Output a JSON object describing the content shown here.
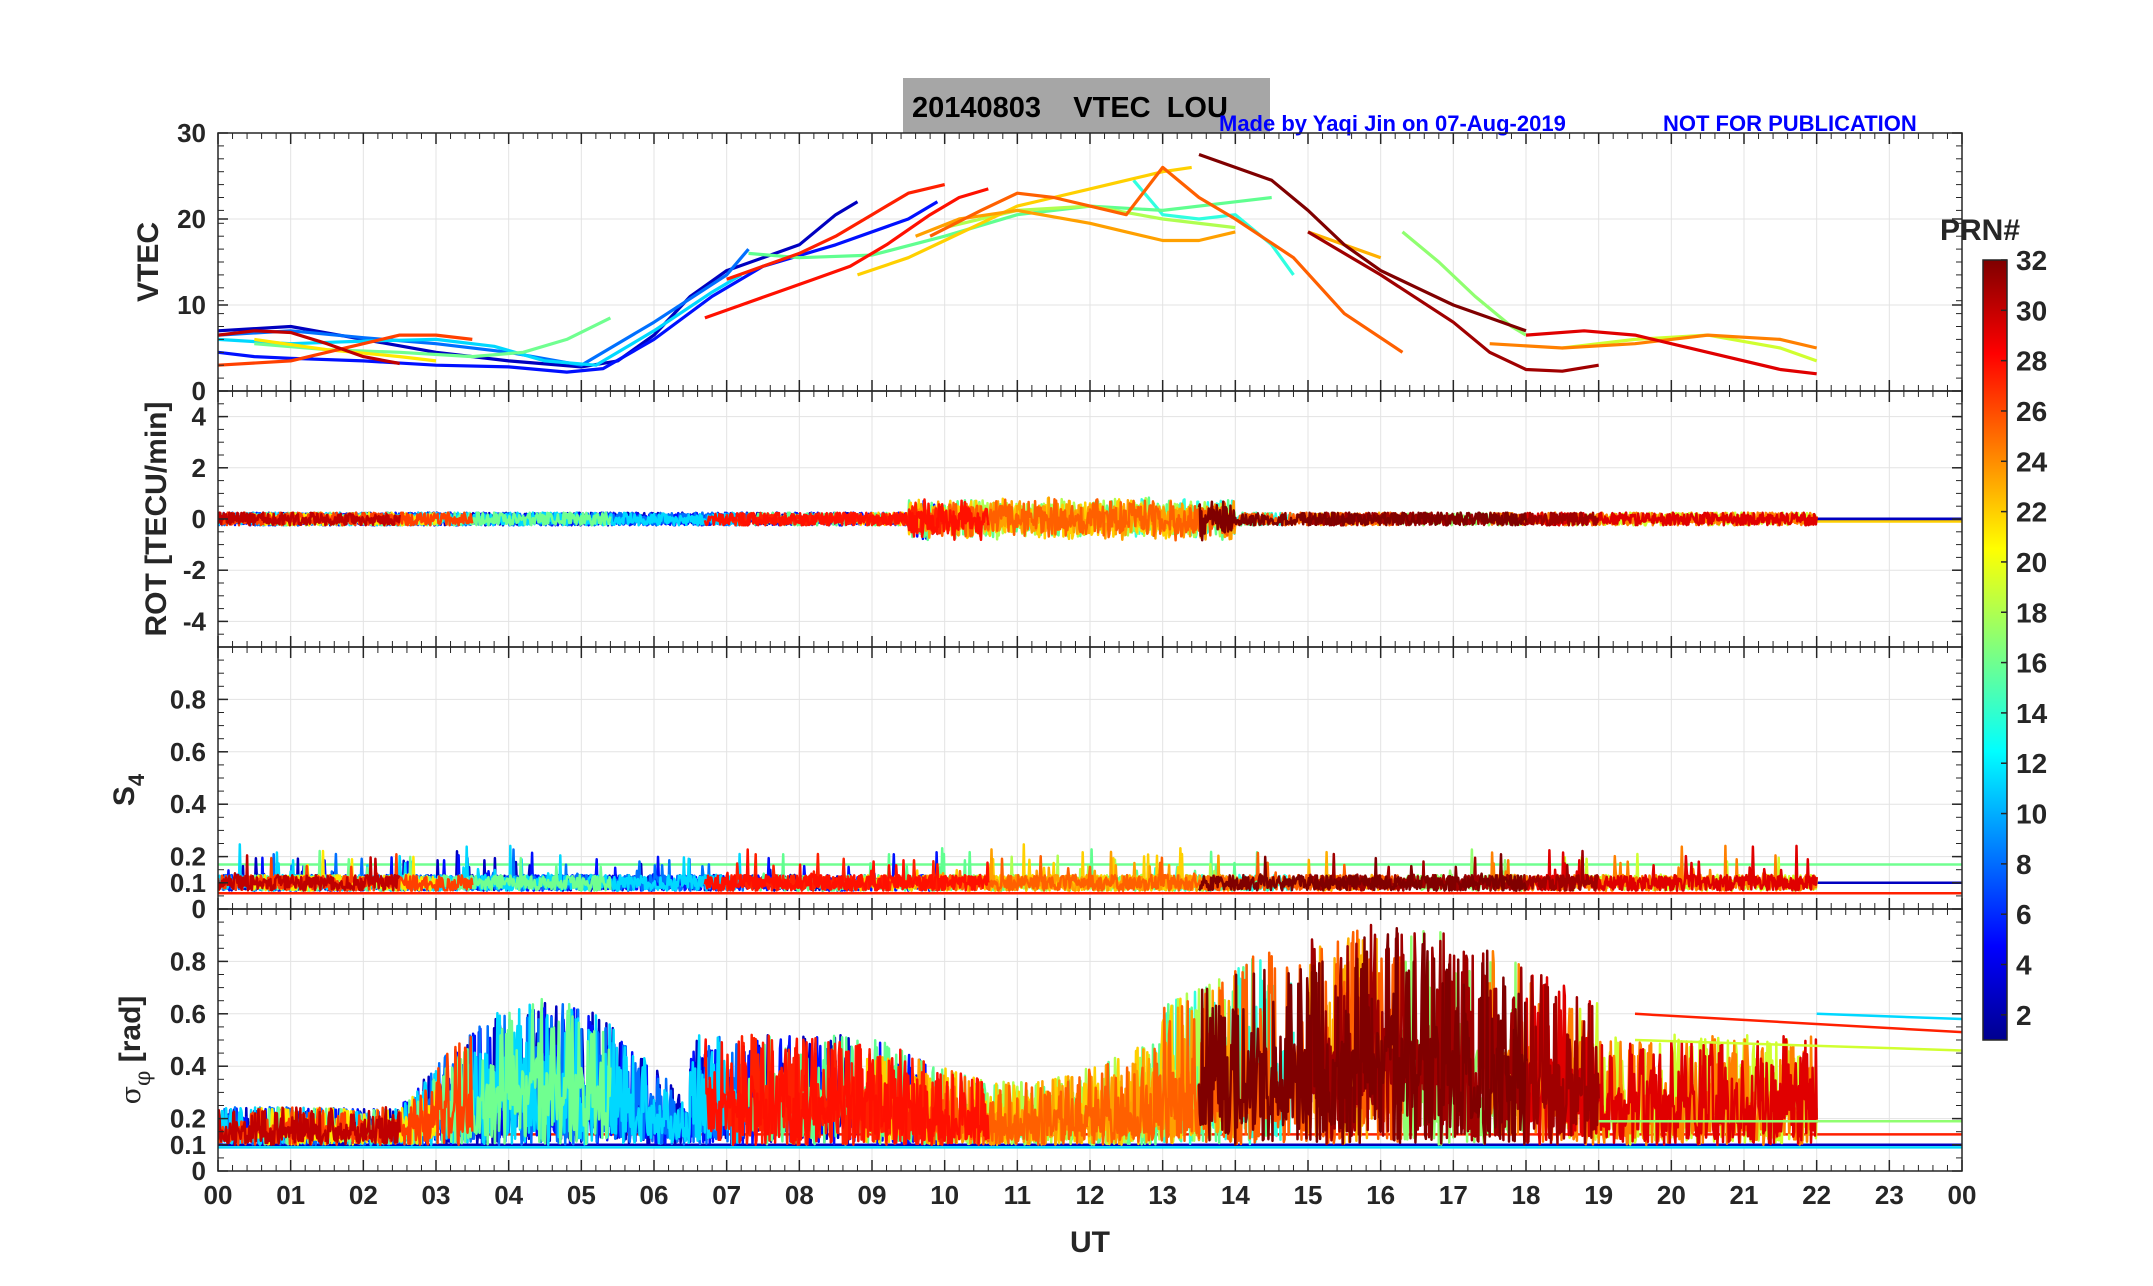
{
  "chart_data": {
    "type": "line",
    "title": "20140803    VTEC  LOU",
    "credit": "Made by Yaqi Jin on 07-Aug-2019",
    "notice": "NOT FOR PUBLICATION",
    "xlabel": "UT",
    "xlim": [
      0,
      24
    ],
    "xticks": [
      "00",
      "01",
      "02",
      "03",
      "04",
      "05",
      "06",
      "07",
      "08",
      "09",
      "10",
      "11",
      "12",
      "13",
      "14",
      "15",
      "16",
      "17",
      "18",
      "19",
      "20",
      "21",
      "22",
      "23",
      "00"
    ],
    "colorbar": {
      "label": "PRN#",
      "range": [
        1,
        32
      ],
      "ticks": [
        "2",
        "4",
        "6",
        "8",
        "10",
        "12",
        "14",
        "16",
        "18",
        "20",
        "22",
        "24",
        "26",
        "28",
        "30",
        "32"
      ],
      "colors": [
        "#00008f",
        "#0000df",
        "#0030ff",
        "#0080ff",
        "#00d0ff",
        "#20ffdf",
        "#70ff8f",
        "#bfff40",
        "#ffef00",
        "#ffa000",
        "#ff5000",
        "#f00000",
        "#9f0000"
      ]
    },
    "panels": [
      {
        "name": "vtec",
        "ylabel": "VTEC",
        "ylim": [
          0,
          30
        ],
        "yticks": [
          "0",
          "10",
          "20",
          "30"
        ],
        "series": [
          {
            "prn": 2,
            "color": "#0000c0",
            "x": [
              0.0,
              1.0,
              2.0,
              3.0,
              4.0,
              5.0,
              5.5,
              6.0,
              6.5,
              7.0,
              7.5,
              8.0,
              8.5,
              8.8
            ],
            "y": [
              7.0,
              7.5,
              6.0,
              4.5,
              3.5,
              2.8,
              3.5,
              6.5,
              11.0,
              14.0,
              15.5,
              17.0,
              20.5,
              22.0
            ]
          },
          {
            "prn": 4,
            "color": "#0010ff",
            "x": [
              0.0,
              0.5,
              1.0,
              2.0,
              3.0,
              4.0,
              4.8,
              5.3,
              6.0,
              6.8,
              7.5,
              8.5,
              9.5,
              9.9
            ],
            "y": [
              4.5,
              4.0,
              3.8,
              3.5,
              3.0,
              2.8,
              2.2,
              2.6,
              6.0,
              11.0,
              14.5,
              17.0,
              20.0,
              22.0
            ]
          },
          {
            "prn": 7,
            "color": "#0070ff",
            "x": [
              0.0,
              1.0,
              2.0,
              3.0,
              4.0,
              5.0,
              6.0,
              7.0,
              7.3
            ],
            "y": [
              6.5,
              7.0,
              6.2,
              5.5,
              4.5,
              3.0,
              8.0,
              13.5,
              16.5
            ]
          },
          {
            "prn": 11,
            "color": "#00d8ff",
            "x": [
              0.0,
              1.0,
              2.0,
              3.0,
              3.8,
              4.5,
              5.2,
              6.0,
              6.8,
              7.2
            ],
            "y": [
              6.0,
              5.5,
              5.8,
              6.0,
              5.2,
              3.5,
              3.0,
              7.0,
              11.5,
              13.5
            ]
          },
          {
            "prn": 13,
            "color": "#30ffe0",
            "x": [
              12.6,
              13.0,
              13.5,
              14.0,
              14.5,
              14.8
            ],
            "y": [
              24.5,
              20.5,
              20.0,
              20.5,
              17.0,
              13.5
            ]
          },
          {
            "prn": 16,
            "color": "#70ff90",
            "x": [
              0.5,
              1.5,
              2.5,
              3.5,
              4.2,
              4.8,
              5.4
            ],
            "y": [
              5.5,
              4.8,
              4.5,
              4.0,
              4.5,
              6.0,
              8.5
            ]
          },
          {
            "prn": 15,
            "color": "#60ff90",
            "x": [
              7.3,
              8.0,
              9.0,
              10.0,
              11.0,
              12.0,
              13.0,
              14.0,
              14.5
            ],
            "y": [
              16.0,
              15.5,
              15.8,
              18.0,
              20.5,
              21.5,
              21.0,
              22.0,
              22.5
            ]
          },
          {
            "prn": 17,
            "color": "#90ff70",
            "x": [
              16.3,
              16.8,
              17.3,
              17.8,
              18.0
            ],
            "y": [
              18.5,
              15.0,
              11.0,
              7.5,
              6.5
            ]
          },
          {
            "prn": 18,
            "color": "#b0ff50",
            "x": [
              10.0,
              11.0,
              12.0,
              13.0,
              14.0
            ],
            "y": [
              19.0,
              21.0,
              21.5,
              20.0,
              19.0
            ]
          },
          {
            "prn": 19,
            "color": "#d0ff30",
            "x": [
              18.5,
              19.5,
              20.5,
              21.5,
              22.0
            ],
            "y": [
              5.0,
              6.0,
              6.5,
              5.0,
              3.5
            ]
          },
          {
            "prn": 20,
            "color": "#ffe800",
            "x": [
              0.5,
              1.5,
              2.5,
              3.0
            ],
            "y": [
              6.0,
              4.8,
              4.0,
              3.5
            ]
          },
          {
            "prn": 21,
            "color": "#ffd000",
            "x": [
              8.8,
              9.5,
              10.0,
              10.5,
              11.0,
              11.5,
              12.0,
              12.5,
              13.0,
              13.4
            ],
            "y": [
              13.5,
              15.5,
              17.5,
              19.5,
              21.5,
              22.5,
              23.5,
              24.5,
              25.5,
              26.0
            ]
          },
          {
            "prn": 22,
            "color": "#ffb000",
            "x": [
              15.0,
              15.5,
              16.0
            ],
            "y": [
              18.5,
              17.0,
              15.5
            ]
          },
          {
            "prn": 23,
            "color": "#ffa000",
            "x": [
              9.6,
              10.2,
              11.0,
              12.0,
              12.5,
              13.0,
              13.5,
              14.0
            ],
            "y": [
              18.0,
              20.0,
              21.0,
              19.5,
              18.5,
              17.5,
              17.5,
              18.5
            ]
          },
          {
            "prn": 24,
            "color": "#ff8000",
            "x": [
              17.5,
              18.5,
              19.5,
              20.5,
              21.5,
              22.0
            ],
            "y": [
              5.5,
              5.0,
              5.5,
              6.5,
              6.0,
              5.0
            ]
          },
          {
            "prn": 25,
            "color": "#ff6000",
            "x": [
              9.8,
              10.5,
              11.0,
              11.5,
              12.0,
              12.5,
              13.0,
              13.5,
              14.0,
              14.8,
              15.5,
              16.3
            ],
            "y": [
              18.0,
              21.0,
              23.0,
              22.5,
              21.5,
              20.5,
              26.0,
              22.5,
              20.0,
              15.5,
              9.0,
              4.5
            ]
          },
          {
            "prn": 26,
            "color": "#ff4000",
            "x": [
              0.0,
              1.0,
              1.5,
              2.0,
              2.5,
              3.0,
              3.5
            ],
            "y": [
              3.0,
              3.5,
              4.5,
              5.5,
              6.5,
              6.5,
              6.0
            ]
          },
          {
            "prn": 27,
            "color": "#ff2000",
            "x": [
              7.0,
              7.5,
              8.0,
              8.5,
              9.0,
              9.5,
              10.0
            ],
            "y": [
              13.0,
              14.5,
              16.0,
              18.0,
              20.5,
              23.0,
              24.0
            ]
          },
          {
            "prn": 28,
            "color": "#ff1000",
            "x": [
              6.7,
              7.2,
              7.7,
              8.2,
              8.7,
              9.2,
              9.8,
              10.2,
              10.6
            ],
            "y": [
              8.5,
              10.0,
              11.5,
              13.0,
              14.5,
              17.0,
              20.5,
              22.5,
              23.5
            ]
          },
          {
            "prn": 29,
            "color": "#e00000",
            "x": [
              18.0,
              18.8,
              19.5,
              20.5,
              21.5,
              22.0
            ],
            "y": [
              6.5,
              7.0,
              6.5,
              4.5,
              2.5,
              2.0
            ]
          },
          {
            "prn": 30,
            "color": "#c00000",
            "x": [
              0.0,
              0.5,
              1.0,
              1.5,
              2.0,
              2.5
            ],
            "y": [
              6.5,
              7.0,
              6.8,
              5.5,
              4.0,
              3.2
            ]
          },
          {
            "prn": 31,
            "color": "#a00000",
            "x": [
              15.0,
              16.0,
              17.0,
              17.5,
              18.0,
              18.5,
              19.0
            ],
            "y": [
              18.5,
              13.5,
              8.0,
              4.5,
              2.5,
              2.3,
              3.0
            ]
          },
          {
            "prn": 32,
            "color": "#800000",
            "x": [
              13.5,
              14.0,
              14.5,
              15.0,
              15.5,
              16.0,
              16.5,
              17.0,
              17.5,
              18.0
            ],
            "y": [
              27.5,
              26.0,
              24.5,
              21.0,
              17.0,
              14.0,
              12.0,
              10.0,
              8.5,
              7.0
            ]
          }
        ]
      },
      {
        "name": "rot",
        "ylabel": "ROT [TECU/min]",
        "ylim": [
          -5,
          5
        ],
        "yticks": [
          "-4",
          "-2",
          "0",
          "2",
          "4"
        ]
      },
      {
        "name": "s4",
        "ylabel": "S4",
        "ylim": [
          0,
          1
        ],
        "yticks": [
          "0",
          "0.1",
          "0.2",
          "0.4",
          "0.6",
          "0.8"
        ]
      },
      {
        "name": "sigphi",
        "ylabel": "σφ [rad]",
        "ylim": [
          0,
          1
        ],
        "yticks": [
          "0",
          "0.1",
          "0.2",
          "0.4",
          "0.6",
          "0.8"
        ]
      }
    ]
  }
}
